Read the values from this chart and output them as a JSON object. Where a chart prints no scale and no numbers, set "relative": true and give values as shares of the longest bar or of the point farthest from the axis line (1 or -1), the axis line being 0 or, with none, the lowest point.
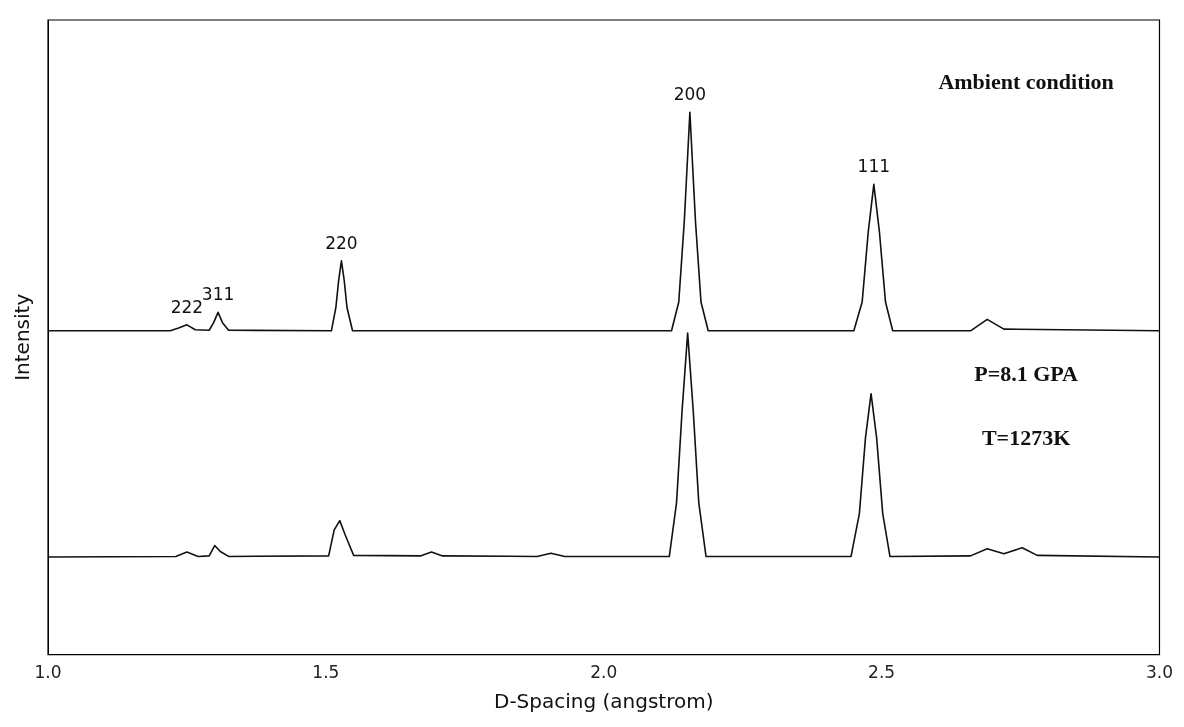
{
  "chart_data": {
    "type": "line",
    "xlabel": "D-Spacing (angstrom)",
    "ylabel": "Intensity",
    "relative": true,
    "grid": false,
    "legend": false,
    "marker": "none",
    "line_style": "solid",
    "xlim": [
      1,
      3
    ],
    "xticks": [
      {
        "value": 1,
        "label": "1.0"
      },
      {
        "value": 1.5,
        "label": "1.5"
      },
      {
        "value": 2,
        "label": "2.0"
      },
      {
        "value": 2.5,
        "label": "2.5"
      },
      {
        "value": 3,
        "label": "3.0"
      }
    ],
    "series": [
      {
        "color": "#111111",
        "x": [
          1.0,
          1.22,
          1.235,
          1.25,
          1.265,
          1.29,
          1.298,
          1.306,
          1.314,
          1.325,
          1.51,
          1.518,
          1.523,
          1.528,
          1.533,
          1.538,
          1.548,
          2.122,
          2.135,
          2.145,
          2.155,
          2.165,
          2.175,
          2.188,
          2.45,
          2.465,
          2.476,
          2.486,
          2.496,
          2.507,
          2.52,
          2.66,
          2.69,
          2.72,
          3.0
        ],
        "values": [
          0.597,
          0.597,
          0.602,
          0.608,
          0.599,
          0.598,
          0.612,
          0.631,
          0.612,
          0.598,
          0.597,
          0.64,
          0.69,
          0.726,
          0.69,
          0.64,
          0.597,
          0.597,
          0.65,
          0.8,
          1.0,
          0.8,
          0.65,
          0.597,
          0.597,
          0.65,
          0.78,
          0.867,
          0.78,
          0.65,
          0.597,
          0.597,
          0.618,
          0.6,
          0.597
        ]
      },
      {
        "color": "#111111",
        "x": [
          1.0,
          1.23,
          1.25,
          1.27,
          1.29,
          1.3,
          1.31,
          1.325,
          1.505,
          1.515,
          1.525,
          1.535,
          1.55,
          1.67,
          1.69,
          1.71,
          1.88,
          1.905,
          1.93,
          2.118,
          2.131,
          2.141,
          2.151,
          2.161,
          2.171,
          2.184,
          2.445,
          2.46,
          2.471,
          2.481,
          2.491,
          2.502,
          2.515,
          2.66,
          2.69,
          2.72,
          2.753,
          2.78,
          3.0
        ],
        "values": [
          0.18,
          0.181,
          0.189,
          0.181,
          0.182,
          0.201,
          0.19,
          0.181,
          0.182,
          0.23,
          0.247,
          0.22,
          0.183,
          0.182,
          0.189,
          0.182,
          0.181,
          0.187,
          0.181,
          0.181,
          0.28,
          0.45,
          0.593,
          0.45,
          0.28,
          0.181,
          0.181,
          0.26,
          0.4,
          0.481,
          0.4,
          0.26,
          0.181,
          0.182,
          0.195,
          0.186,
          0.197,
          0.183,
          0.18
        ]
      }
    ],
    "annotations": [
      {
        "text": "222",
        "x": 1.25,
        "y": 0.608
      },
      {
        "text": "311",
        "x": 1.306,
        "y": 0.631
      },
      {
        "text": "220",
        "x": 1.528,
        "y": 0.726
      },
      {
        "text": "200",
        "x": 2.155,
        "y": 1.0
      },
      {
        "text": "111",
        "x": 2.486,
        "y": 0.867
      },
      "Ambient condition",
      "P=8.1 GPA",
      "T=1273K"
    ]
  }
}
